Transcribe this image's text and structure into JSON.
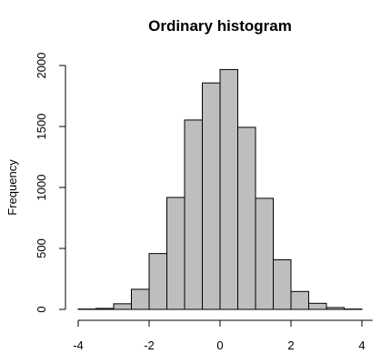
{
  "chart_data": {
    "type": "bar",
    "title": "Ordinary histogram",
    "xlabel": "",
    "ylabel": "Frequency",
    "xlim": [
      -4,
      4.3
    ],
    "ylim": [
      0,
      2000
    ],
    "x_ticks": [
      -4,
      -2,
      0,
      2,
      4
    ],
    "x_tick_labels": [
      "-4",
      "-2",
      "0",
      "2",
      "4"
    ],
    "y_ticks": [
      0,
      500,
      1000,
      1500,
      2000
    ],
    "y_tick_labels": [
      "0",
      "500",
      "1000",
      "1500",
      "2000"
    ],
    "grid": false,
    "legend": "none",
    "bins": [
      {
        "x0": -4.0,
        "x1": -3.5,
        "value": 3
      },
      {
        "x0": -3.5,
        "x1": -3.0,
        "value": 8
      },
      {
        "x0": -3.0,
        "x1": -2.5,
        "value": 46
      },
      {
        "x0": -2.5,
        "x1": -2.0,
        "value": 165
      },
      {
        "x0": -2.0,
        "x1": -1.5,
        "value": 458
      },
      {
        "x0": -1.5,
        "x1": -1.0,
        "value": 918
      },
      {
        "x0": -1.0,
        "x1": -0.5,
        "value": 1553
      },
      {
        "x0": -0.5,
        "x1": 0.0,
        "value": 1857
      },
      {
        "x0": 0.0,
        "x1": 0.5,
        "value": 1967
      },
      {
        "x0": 0.5,
        "x1": 1.0,
        "value": 1493
      },
      {
        "x0": 1.0,
        "x1": 1.5,
        "value": 911
      },
      {
        "x0": 1.5,
        "x1": 2.0,
        "value": 407
      },
      {
        "x0": 2.0,
        "x1": 2.5,
        "value": 147
      },
      {
        "x0": 2.5,
        "x1": 3.0,
        "value": 50
      },
      {
        "x0": 3.0,
        "x1": 3.5,
        "value": 15
      },
      {
        "x0": 3.5,
        "x1": 4.0,
        "value": 3
      }
    ],
    "colors": {
      "bar_fill": "#bebebe",
      "bar_stroke": "#000000",
      "axis": "#000000",
      "text": "#000000"
    }
  }
}
